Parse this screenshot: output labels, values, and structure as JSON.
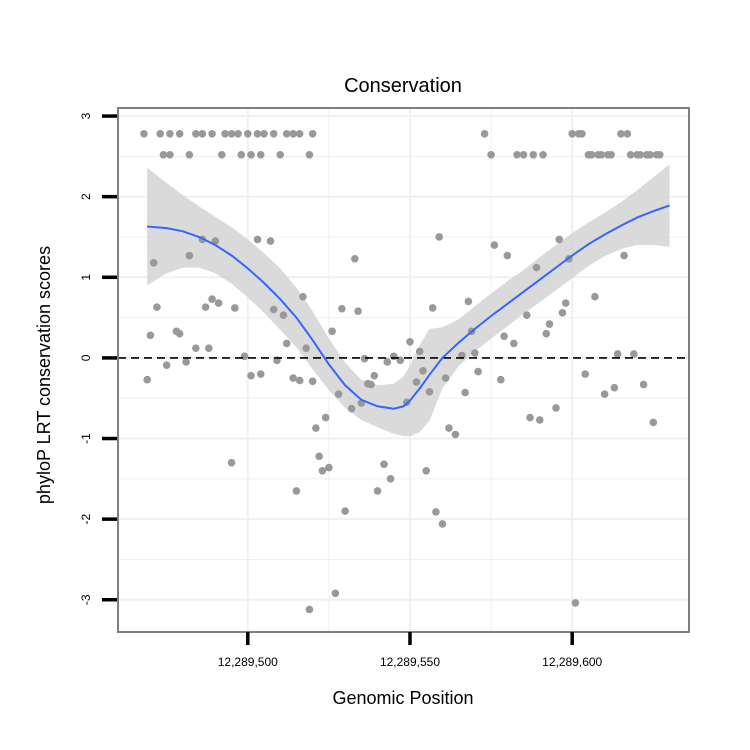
{
  "chart_data": {
    "type": "scatter",
    "title": "Conservation",
    "xlabel": "Genomic Position",
    "ylabel": "phyloP LRT conservation scores",
    "xlim": [
      12289460,
      12289636
    ],
    "ylim": [
      -3.4,
      3.1
    ],
    "xticks": [
      12289500,
      12289550,
      12289600
    ],
    "xtick_labels": [
      "12,289,500",
      "12,289,550",
      "12,289,600"
    ],
    "yticks": [
      -3,
      -2,
      -1,
      0,
      1,
      2,
      3
    ],
    "ytick_labels": [
      "-3",
      "-2",
      "-1",
      "0",
      "1",
      "2",
      "3"
    ],
    "grid": true,
    "legend": "none",
    "reference_line": {
      "y": 0,
      "style": "dashed"
    },
    "colors": {
      "points": "#999999",
      "smooth_line": "#3366FF",
      "confidence_band": "#d3d3d3",
      "panel_background": "#ffffff",
      "panel_border": "#7f7f7f",
      "grid": "#f0f0f0"
    },
    "points": [
      {
        "x": 12289468,
        "y": 2.78
      },
      {
        "x": 12289473,
        "y": 2.78
      },
      {
        "x": 12289476,
        "y": 2.78
      },
      {
        "x": 12289479,
        "y": 2.78
      },
      {
        "x": 12289484,
        "y": 2.78
      },
      {
        "x": 12289486,
        "y": 2.78
      },
      {
        "x": 12289489,
        "y": 2.78
      },
      {
        "x": 12289493,
        "y": 2.78
      },
      {
        "x": 12289495,
        "y": 2.78
      },
      {
        "x": 12289497,
        "y": 2.78
      },
      {
        "x": 12289500,
        "y": 2.78
      },
      {
        "x": 12289503,
        "y": 2.78
      },
      {
        "x": 12289505,
        "y": 2.78
      },
      {
        "x": 12289508,
        "y": 2.78
      },
      {
        "x": 12289512,
        "y": 2.78
      },
      {
        "x": 12289514,
        "y": 2.78
      },
      {
        "x": 12289516,
        "y": 2.78
      },
      {
        "x": 12289520,
        "y": 2.78
      },
      {
        "x": 12289474,
        "y": 2.52
      },
      {
        "x": 12289476,
        "y": 2.52
      },
      {
        "x": 12289482,
        "y": 2.52
      },
      {
        "x": 12289492,
        "y": 2.52
      },
      {
        "x": 12289498,
        "y": 2.52
      },
      {
        "x": 12289501,
        "y": 2.52
      },
      {
        "x": 12289504,
        "y": 2.52
      },
      {
        "x": 12289510,
        "y": 2.52
      },
      {
        "x": 12289519,
        "y": 2.52
      },
      {
        "x": 12289469,
        "y": -0.27
      },
      {
        "x": 12289470,
        "y": 0.28
      },
      {
        "x": 12289471,
        "y": 1.18
      },
      {
        "x": 12289472,
        "y": 0.63
      },
      {
        "x": 12289475,
        "y": -0.09
      },
      {
        "x": 12289478,
        "y": 0.33
      },
      {
        "x": 12289479,
        "y": 0.3
      },
      {
        "x": 12289481,
        "y": -0.05
      },
      {
        "x": 12289482,
        "y": 1.27
      },
      {
        "x": 12289484,
        "y": 0.12
      },
      {
        "x": 12289486,
        "y": 1.47
      },
      {
        "x": 12289487,
        "y": 0.63
      },
      {
        "x": 12289488,
        "y": 0.12
      },
      {
        "x": 12289489,
        "y": 0.73
      },
      {
        "x": 12289490,
        "y": 1.45
      },
      {
        "x": 12289491,
        "y": 0.68
      },
      {
        "x": 12289495,
        "y": -1.3
      },
      {
        "x": 12289496,
        "y": 0.62
      },
      {
        "x": 12289499,
        "y": 0.02
      },
      {
        "x": 12289501,
        "y": -0.22
      },
      {
        "x": 12289503,
        "y": 1.47
      },
      {
        "x": 12289504,
        "y": -0.2
      },
      {
        "x": 12289507,
        "y": 1.45
      },
      {
        "x": 12289508,
        "y": 0.6
      },
      {
        "x": 12289509,
        "y": -0.03
      },
      {
        "x": 12289511,
        "y": 0.53
      },
      {
        "x": 12289512,
        "y": 0.18
      },
      {
        "x": 12289514,
        "y": -0.25
      },
      {
        "x": 12289515,
        "y": -1.65
      },
      {
        "x": 12289516,
        "y": -0.28
      },
      {
        "x": 12289517,
        "y": 0.76
      },
      {
        "x": 12289518,
        "y": 0.12
      },
      {
        "x": 12289519,
        "y": -3.12
      },
      {
        "x": 12289520,
        "y": -0.29
      },
      {
        "x": 12289521,
        "y": -0.87
      },
      {
        "x": 12289522,
        "y": -1.22
      },
      {
        "x": 12289523,
        "y": -1.4
      },
      {
        "x": 12289524,
        "y": -0.74
      },
      {
        "x": 12289525,
        "y": -1.36
      },
      {
        "x": 12289526,
        "y": 0.33
      },
      {
        "x": 12289527,
        "y": -2.92
      },
      {
        "x": 12289528,
        "y": -0.45
      },
      {
        "x": 12289529,
        "y": 0.61
      },
      {
        "x": 12289530,
        "y": -1.9
      },
      {
        "x": 12289532,
        "y": -0.63
      },
      {
        "x": 12289533,
        "y": 1.23
      },
      {
        "x": 12289534,
        "y": 0.58
      },
      {
        "x": 12289535,
        "y": -0.56
      },
      {
        "x": 12289536,
        "y": -0.01
      },
      {
        "x": 12289537,
        "y": -0.32
      },
      {
        "x": 12289538,
        "y": -0.33
      },
      {
        "x": 12289539,
        "y": -0.22
      },
      {
        "x": 12289540,
        "y": -1.65
      },
      {
        "x": 12289542,
        "y": -1.32
      },
      {
        "x": 12289543,
        "y": -0.05
      },
      {
        "x": 12289544,
        "y": -1.5
      },
      {
        "x": 12289545,
        "y": 0.02
      },
      {
        "x": 12289547,
        "y": -0.03
      },
      {
        "x": 12289549,
        "y": -0.55
      },
      {
        "x": 12289550,
        "y": 0.2
      },
      {
        "x": 12289552,
        "y": -0.3
      },
      {
        "x": 12289553,
        "y": 0.08
      },
      {
        "x": 12289554,
        "y": -0.16
      },
      {
        "x": 12289555,
        "y": -1.4
      },
      {
        "x": 12289556,
        "y": -0.42
      },
      {
        "x": 12289557,
        "y": 0.62
      },
      {
        "x": 12289558,
        "y": -1.91
      },
      {
        "x": 12289559,
        "y": 1.5
      },
      {
        "x": 12289560,
        "y": -2.06
      },
      {
        "x": 12289561,
        "y": -0.25
      },
      {
        "x": 12289562,
        "y": -0.87
      },
      {
        "x": 12289564,
        "y": -0.95
      },
      {
        "x": 12289566,
        "y": 0.03
      },
      {
        "x": 12289567,
        "y": -0.43
      },
      {
        "x": 12289568,
        "y": 0.7
      },
      {
        "x": 12289569,
        "y": 0.33
      },
      {
        "x": 12289570,
        "y": 0.06
      },
      {
        "x": 12289571,
        "y": -0.17
      },
      {
        "x": 12289573,
        "y": 2.78
      },
      {
        "x": 12289575,
        "y": 2.52
      },
      {
        "x": 12289576,
        "y": 1.4
      },
      {
        "x": 12289578,
        "y": -0.27
      },
      {
        "x": 12289579,
        "y": 0.27
      },
      {
        "x": 12289580,
        "y": 1.27
      },
      {
        "x": 12289582,
        "y": 0.18
      },
      {
        "x": 12289583,
        "y": 2.52
      },
      {
        "x": 12289585,
        "y": 2.52
      },
      {
        "x": 12289586,
        "y": 0.53
      },
      {
        "x": 12289587,
        "y": -0.74
      },
      {
        "x": 12289588,
        "y": 2.52
      },
      {
        "x": 12289589,
        "y": 1.12
      },
      {
        "x": 12289590,
        "y": -0.77
      },
      {
        "x": 12289591,
        "y": 2.52
      },
      {
        "x": 12289592,
        "y": 0.3
      },
      {
        "x": 12289593,
        "y": 0.42
      },
      {
        "x": 12289595,
        "y": -0.62
      },
      {
        "x": 12289596,
        "y": 1.47
      },
      {
        "x": 12289597,
        "y": 0.56
      },
      {
        "x": 12289598,
        "y": 0.68
      },
      {
        "x": 12289599,
        "y": 1.23
      },
      {
        "x": 12289600,
        "y": 2.78
      },
      {
        "x": 12289601,
        "y": -3.04
      },
      {
        "x": 12289602,
        "y": 2.78
      },
      {
        "x": 12289603,
        "y": 2.78
      },
      {
        "x": 12289604,
        "y": -0.2
      },
      {
        "x": 12289605,
        "y": 2.52
      },
      {
        "x": 12289606,
        "y": 2.52
      },
      {
        "x": 12289607,
        "y": 0.76
      },
      {
        "x": 12289608,
        "y": 2.52
      },
      {
        "x": 12289609,
        "y": 2.52
      },
      {
        "x": 12289610,
        "y": -0.45
      },
      {
        "x": 12289611,
        "y": 2.52
      },
      {
        "x": 12289612,
        "y": 2.52
      },
      {
        "x": 12289613,
        "y": -0.37
      },
      {
        "x": 12289614,
        "y": 0.05
      },
      {
        "x": 12289615,
        "y": 2.78
      },
      {
        "x": 12289616,
        "y": 1.27
      },
      {
        "x": 12289617,
        "y": 2.78
      },
      {
        "x": 12289618,
        "y": 2.52
      },
      {
        "x": 12289619,
        "y": 0.05
      },
      {
        "x": 12289620,
        "y": 2.52
      },
      {
        "x": 12289621,
        "y": 2.52
      },
      {
        "x": 12289622,
        "y": -0.33
      },
      {
        "x": 12289623,
        "y": 2.52
      },
      {
        "x": 12289624,
        "y": 2.52
      },
      {
        "x": 12289625,
        "y": -0.8
      },
      {
        "x": 12289626,
        "y": 2.52
      },
      {
        "x": 12289627,
        "y": 2.52
      }
    ],
    "smooth_curve": {
      "x": [
        12289469,
        12289475,
        12289480,
        12289485,
        12289490,
        12289495,
        12289500,
        12289505,
        12289510,
        12289515,
        12289520,
        12289525,
        12289530,
        12289535,
        12289540,
        12289545,
        12289548,
        12289550,
        12289553,
        12289556,
        12289560,
        12289565,
        12289570,
        12289575,
        12289580,
        12289585,
        12289590,
        12289595,
        12289600,
        12289605,
        12289610,
        12289615,
        12289620,
        12289625,
        12289630
      ],
      "y": [
        1.63,
        1.61,
        1.57,
        1.5,
        1.4,
        1.27,
        1.11,
        0.93,
        0.73,
        0.5,
        0.22,
        -0.08,
        -0.34,
        -0.52,
        -0.6,
        -0.63,
        -0.6,
        -0.53,
        -0.38,
        -0.21,
        0.0,
        0.19,
        0.36,
        0.52,
        0.67,
        0.82,
        0.97,
        1.12,
        1.27,
        1.41,
        1.53,
        1.64,
        1.74,
        1.82,
        1.89
      ],
      "lower": [
        0.9,
        1.05,
        1.12,
        1.12,
        1.05,
        0.92,
        0.75,
        0.56,
        0.35,
        0.13,
        -0.14,
        -0.4,
        -0.62,
        -0.77,
        -0.86,
        -0.94,
        -0.97,
        -0.97,
        -0.92,
        -0.78,
        -0.38,
        -0.1,
        0.08,
        0.24,
        0.39,
        0.55,
        0.69,
        0.84,
        0.99,
        1.14,
        1.26,
        1.35,
        1.4,
        1.4,
        1.38
      ],
      "upper": [
        2.36,
        2.17,
        2.02,
        1.88,
        1.75,
        1.62,
        1.47,
        1.3,
        1.11,
        0.87,
        0.58,
        0.24,
        -0.06,
        -0.27,
        -0.34,
        -0.32,
        -0.23,
        -0.09,
        0.16,
        0.36,
        0.38,
        0.48,
        0.64,
        0.8,
        0.95,
        1.09,
        1.25,
        1.4,
        1.55,
        1.68,
        1.8,
        1.93,
        2.08,
        2.24,
        2.4
      ]
    }
  }
}
